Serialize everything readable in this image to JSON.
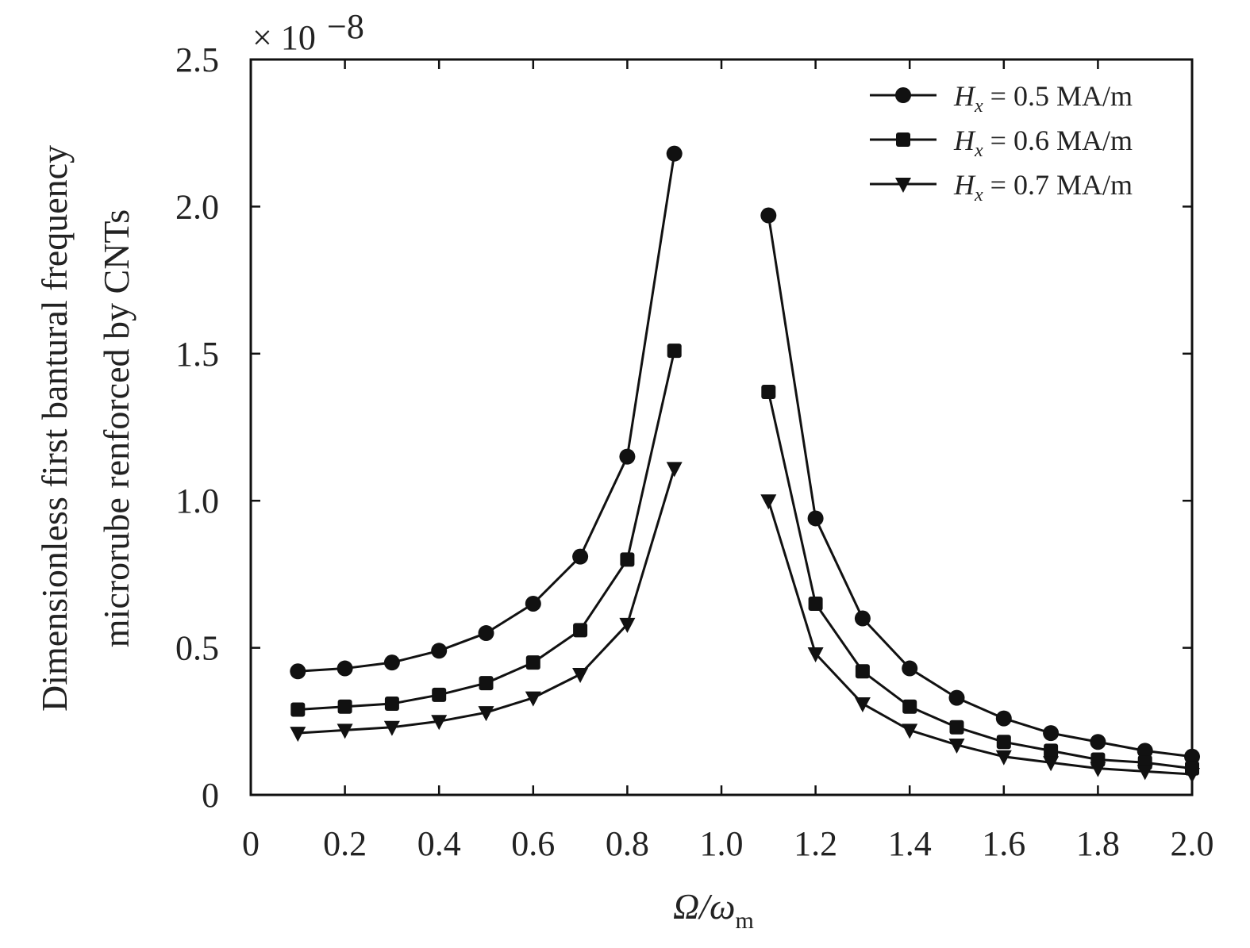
{
  "chart_data": {
    "type": "line",
    "xlabel_main": "Ω/ω",
    "xlabel_sub": "m",
    "ylabel_line1": "Dimensionless first bantural frequency",
    "ylabel_line2": "microrube renforced by CNTs",
    "y_multiplier_base": "× 10",
    "y_multiplier_exp": "−8",
    "xlim": [
      0,
      2.0
    ],
    "ylim": [
      0,
      2.5
    ],
    "x_ticks": [
      0,
      0.2,
      0.4,
      0.6,
      0.8,
      1.0,
      1.2,
      1.4,
      1.6,
      1.8,
      2.0
    ],
    "x_tick_labels": [
      "0",
      "0.2",
      "0.4",
      "0.6",
      "0.8",
      "1.0",
      "1.2",
      "1.4",
      "1.6",
      "1.8",
      "2.0"
    ],
    "y_ticks": [
      0,
      0.5,
      1.0,
      1.5,
      2.0,
      2.5
    ],
    "y_tick_labels": [
      "0",
      "0.5",
      "1.0",
      "1.5",
      "2.0",
      "2.5"
    ],
    "grid": false,
    "legend_position": "top-right",
    "x": [
      0.1,
      0.2,
      0.3,
      0.4,
      0.5,
      0.6,
      0.7,
      0.8,
      0.9,
      1.1,
      1.2,
      1.3,
      1.4,
      1.5,
      1.6,
      1.7,
      1.8,
      1.9,
      2.0
    ],
    "series": [
      {
        "name_var": "H",
        "name_sub": "x",
        "name_rest": " = 0.5 MA/m",
        "marker": "circle",
        "color": "#111111",
        "values": [
          0.42,
          0.43,
          0.45,
          0.49,
          0.55,
          0.65,
          0.81,
          1.15,
          2.18,
          1.97,
          0.94,
          0.6,
          0.43,
          0.33,
          0.26,
          0.21,
          0.18,
          0.15,
          0.13
        ]
      },
      {
        "name_var": "H",
        "name_sub": "x",
        "name_rest": " = 0.6 MA/m",
        "marker": "square",
        "color": "#111111",
        "values": [
          0.29,
          0.3,
          0.31,
          0.34,
          0.38,
          0.45,
          0.56,
          0.8,
          1.51,
          1.37,
          0.65,
          0.42,
          0.3,
          0.23,
          0.18,
          0.15,
          0.12,
          0.11,
          0.09
        ]
      },
      {
        "name_var": "H",
        "name_sub": "x",
        "name_rest": " = 0.7 MA/m",
        "marker": "triangle-down",
        "color": "#111111",
        "values": [
          0.21,
          0.22,
          0.23,
          0.25,
          0.28,
          0.33,
          0.41,
          0.58,
          1.11,
          1.0,
          0.48,
          0.31,
          0.22,
          0.17,
          0.13,
          0.11,
          0.09,
          0.08,
          0.07
        ]
      }
    ]
  }
}
